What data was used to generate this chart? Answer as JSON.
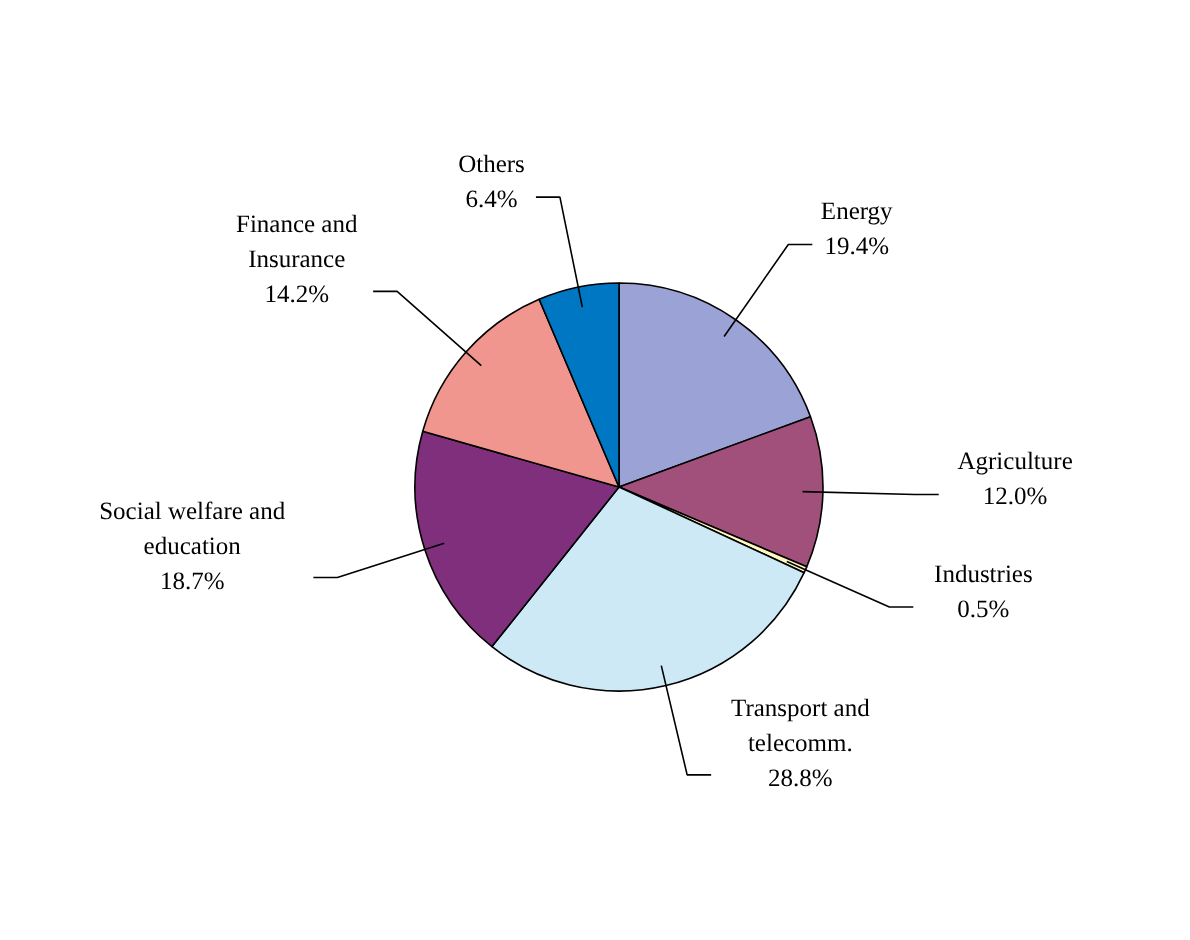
{
  "chart_data": {
    "type": "pie",
    "categories": [
      "Energy",
      "Agriculture",
      "Industries",
      "Transport and\ntelecomm.",
      "Social welfare and\neducation",
      "Finance and\nInsurance",
      "Others"
    ],
    "values": [
      19.4,
      12.0,
      0.5,
      28.8,
      18.7,
      14.2,
      6.4
    ],
    "value_labels": [
      "19.4%",
      "12.0%",
      "0.5%",
      "28.8%",
      "18.7%",
      "14.2%",
      "6.4%"
    ],
    "colors": [
      "#9ba3d6",
      "#a0507a",
      "#fff6c0",
      "#cde9f5",
      "#7f2f7c",
      "#f0968e",
      "#0077c2"
    ]
  }
}
